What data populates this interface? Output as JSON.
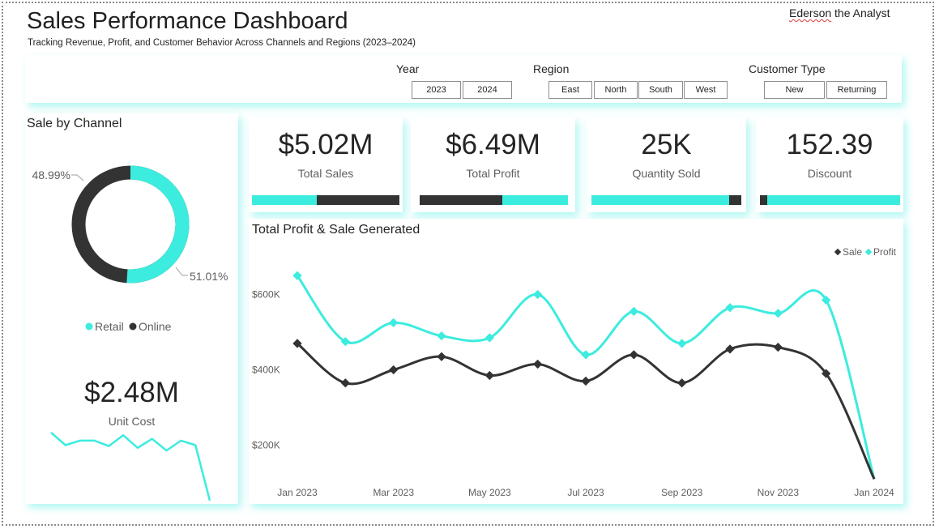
{
  "header": {
    "title": "Sales Performance Dashboard",
    "subtitle": "Tracking Revenue, Profit, and Customer Behavior Across Channels and Regions (2023–2024)",
    "author_first": "Ederson",
    "author_rest": " the Analyst"
  },
  "colors": {
    "accent": "#3CECDE",
    "dark": "#333333"
  },
  "filters": {
    "year": {
      "label": "Year",
      "options": [
        "2023",
        "2024"
      ]
    },
    "region": {
      "label": "Region",
      "options": [
        "East",
        "North",
        "South",
        "West"
      ]
    },
    "customer_type": {
      "label": "Customer Type",
      "options": [
        "New",
        "Returning"
      ]
    }
  },
  "channel": {
    "title": "Sale by Channel",
    "legend": [
      "Retail",
      "Online"
    ],
    "online_label": "48.99%",
    "retail_label": "51.01%",
    "chart_data": {
      "type": "pie",
      "labels": [
        "Retail",
        "Online"
      ],
      "values": [
        51.01,
        48.99
      ],
      "colors": [
        "#3CECDE",
        "#333333"
      ]
    }
  },
  "unit_cost": {
    "value": "$2.48M",
    "label": "Unit Cost",
    "trend": [
      0.76,
      0.62,
      0.67,
      0.67,
      0.61,
      0.73,
      0.59,
      0.69,
      0.56,
      0.67,
      0.62,
      0.0
    ]
  },
  "kpis": [
    {
      "value": "$5.02M",
      "label": "Total Sales",
      "progress": 0.44,
      "fill": "accent"
    },
    {
      "value": "$6.49M",
      "label": "Total Profit",
      "progress": 0.56,
      "fill": "dark"
    },
    {
      "value": "25K",
      "label": "Quantity Sold",
      "progress": 0.92,
      "fill": "accent"
    },
    {
      "value": "152.39",
      "label": "Discount",
      "progress": 0.05,
      "fill": "dark"
    }
  ],
  "line_chart": {
    "title": "Total Profit & Sale Generated",
    "legend": [
      "Sale",
      "Profit"
    ],
    "y_ticks": [
      "$600K",
      "$400K",
      "$200K"
    ],
    "x_ticks": [
      "Jan 2023",
      "Mar 2023",
      "May 2023",
      "Jul 2023",
      "Sep 2023",
      "Nov 2023",
      "Jan 2024"
    ],
    "chart_data": {
      "type": "line",
      "x": [
        "2023-01",
        "2023-02",
        "2023-03",
        "2023-04",
        "2023-05",
        "2023-06",
        "2023-07",
        "2023-08",
        "2023-09",
        "2023-10",
        "2023-11",
        "2023-12",
        "2024-01"
      ],
      "y_tick_values": [
        600000,
        400000,
        200000
      ],
      "series": [
        {
          "name": "Sale",
          "color": "#333333",
          "values": [
            470000,
            365000,
            400000,
            435000,
            385000,
            415000,
            370000,
            440000,
            365000,
            455000,
            460000,
            390000,
            110000
          ]
        },
        {
          "name": "Profit",
          "color": "#3CECDE",
          "values": [
            650000,
            475000,
            525000,
            490000,
            485000,
            600000,
            440000,
            555000,
            470000,
            565000,
            550000,
            585000,
            110000
          ]
        }
      ]
    }
  }
}
